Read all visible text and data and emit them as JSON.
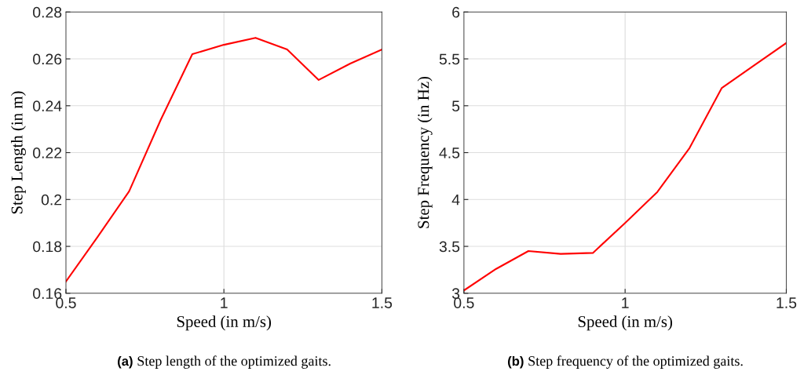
{
  "chart_data": [
    {
      "type": "line",
      "xlabel": "Speed (in m/s)",
      "ylabel": "Step Length (in m)",
      "x": [
        0.5,
        0.6,
        0.7,
        0.8,
        0.9,
        1.0,
        1.1,
        1.2,
        1.3,
        1.4,
        1.5
      ],
      "series": [
        {
          "color": "#ff0000",
          "values": [
            0.165,
            0.184,
            0.2035,
            0.234,
            0.262,
            0.266,
            0.269,
            0.264,
            0.251,
            0.258,
            0.264
          ]
        }
      ],
      "xlim": [
        0.5,
        1.5
      ],
      "xticks": [
        0.5,
        1,
        1.5
      ],
      "ylim": [
        0.16,
        0.28
      ],
      "yticks": [
        0.16,
        0.18,
        0.2,
        0.22,
        0.24,
        0.26,
        0.28
      ],
      "grid": true,
      "annotations": [
        "(a) Step length of the optimized gaits."
      ]
    },
    {
      "type": "line",
      "xlabel": "Speed (in m/s)",
      "ylabel": "Step Frequency (in Hz)",
      "x": [
        0.5,
        0.6,
        0.7,
        0.8,
        0.9,
        1.0,
        1.1,
        1.2,
        1.3,
        1.4,
        1.5
      ],
      "series": [
        {
          "color": "#ff0000",
          "values": [
            3.03,
            3.26,
            3.45,
            3.42,
            3.43,
            3.75,
            4.08,
            4.55,
            5.19,
            5.43,
            5.67
          ]
        }
      ],
      "xlim": [
        0.5,
        1.5
      ],
      "xticks": [
        0.5,
        1,
        1.5
      ],
      "ylim": [
        3,
        6
      ],
      "yticks": [
        3,
        3.5,
        4,
        4.5,
        5,
        5.5,
        6
      ],
      "grid": true,
      "annotations": [
        "(b) Step frequency of the optimized gaits."
      ]
    }
  ]
}
